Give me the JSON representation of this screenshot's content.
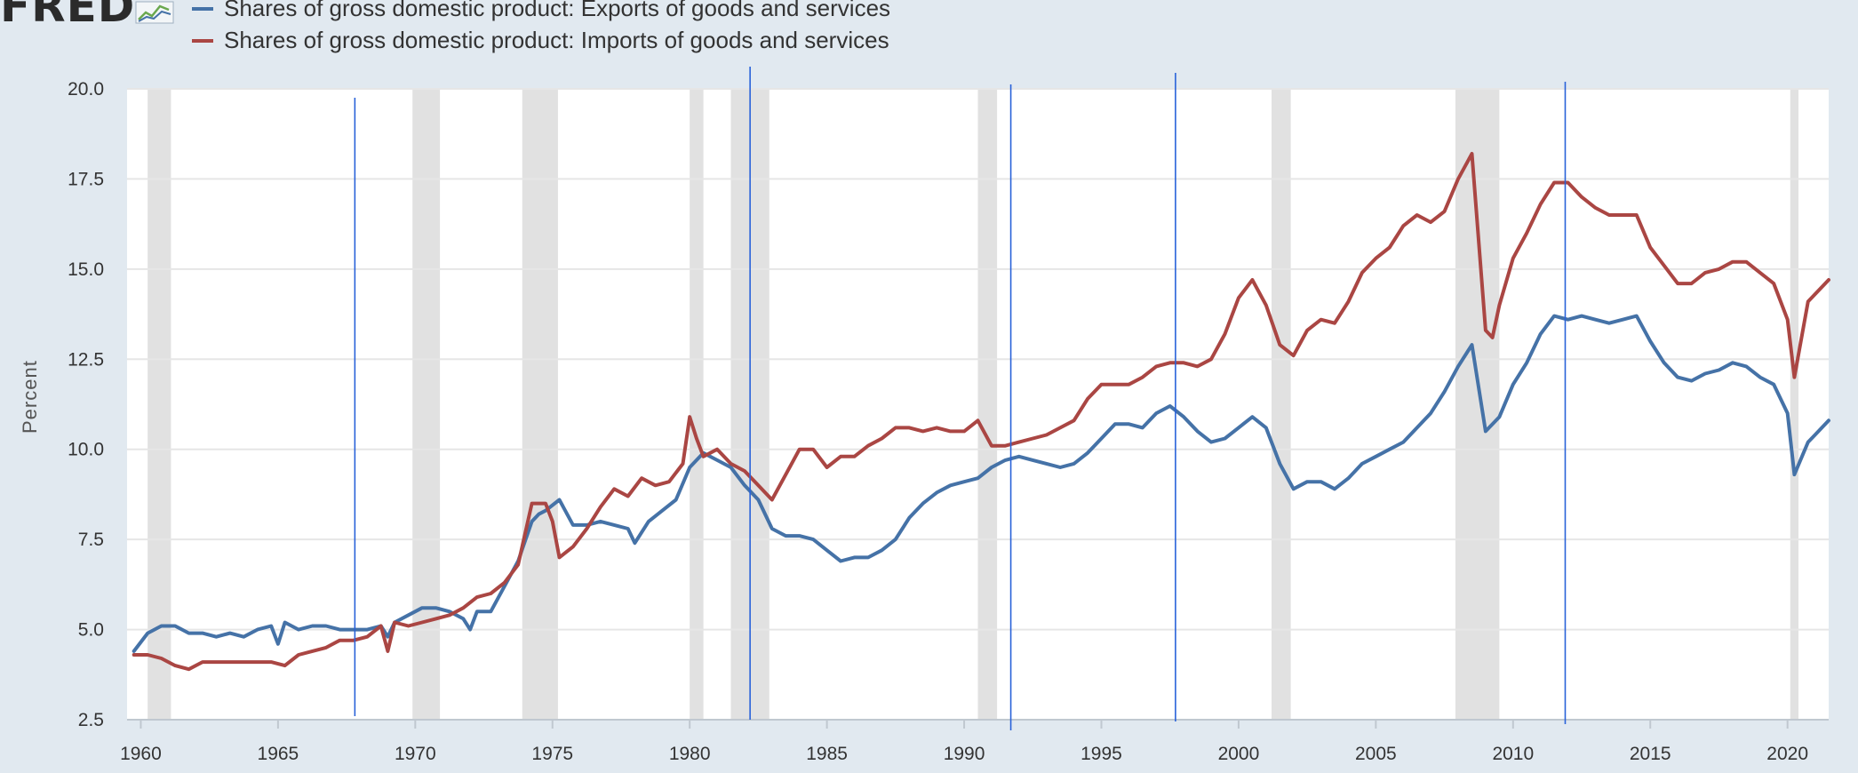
{
  "header": {
    "logo_text": "FRED",
    "logo_icon": "fred-chart-logo-icon"
  },
  "colors": {
    "exports": "#4572a7",
    "imports": "#aa4643",
    "recession": "#e1e1e1",
    "vertical_marker": "#2962d9",
    "grid": "#e6e6e6",
    "background": "#e1e9f0",
    "plot": "#ffffff"
  },
  "chart_data": {
    "type": "line",
    "ylabel": "Percent",
    "xlim": [
      1959.5,
      2021.5
    ],
    "ylim": [
      2.5,
      20.0
    ],
    "yticks": [
      2.5,
      5.0,
      7.5,
      10.0,
      12.5,
      15.0,
      17.5,
      20.0
    ],
    "ytick_labels": [
      "2.5",
      "5.0",
      "7.5",
      "10.0",
      "12.5",
      "15.0",
      "17.5",
      "20.0"
    ],
    "xticks": [
      1960,
      1965,
      1970,
      1975,
      1980,
      1985,
      1990,
      1995,
      2000,
      2005,
      2010,
      2015,
      2020
    ],
    "xtick_labels": [
      "1960",
      "1965",
      "1970",
      "1975",
      "1980",
      "1985",
      "1990",
      "1995",
      "2000",
      "2005",
      "2010",
      "2015",
      "2020"
    ],
    "grid": true,
    "legend_position": "top-left",
    "recessions": [
      [
        1960.25,
        1961.1
      ],
      [
        1969.9,
        1970.9
      ],
      [
        1973.9,
        1975.2
      ],
      [
        1980.0,
        1980.5
      ],
      [
        1981.5,
        1982.9
      ],
      [
        1990.5,
        1991.2
      ],
      [
        2001.2,
        2001.9
      ],
      [
        2007.9,
        2009.5
      ],
      [
        2020.1,
        2020.4
      ]
    ],
    "vertical_markers": [
      1967.8,
      1982.2,
      1991.7,
      1997.7,
      2011.9
    ],
    "series": [
      {
        "name": "Shares of gross domestic product: Exports of goods and services",
        "points": [
          [
            1959.75,
            4.4
          ],
          [
            1960.25,
            4.9
          ],
          [
            1960.75,
            5.1
          ],
          [
            1961.25,
            5.1
          ],
          [
            1961.75,
            4.9
          ],
          [
            1962.25,
            4.9
          ],
          [
            1962.75,
            4.8
          ],
          [
            1963.25,
            4.9
          ],
          [
            1963.75,
            4.8
          ],
          [
            1964.25,
            5.0
          ],
          [
            1964.75,
            5.1
          ],
          [
            1965.0,
            4.6
          ],
          [
            1965.25,
            5.2
          ],
          [
            1965.75,
            5.0
          ],
          [
            1966.25,
            5.1
          ],
          [
            1966.75,
            5.1
          ],
          [
            1967.25,
            5.0
          ],
          [
            1967.75,
            5.0
          ],
          [
            1968.25,
            5.0
          ],
          [
            1968.75,
            5.1
          ],
          [
            1969.0,
            4.8
          ],
          [
            1969.25,
            5.2
          ],
          [
            1969.75,
            5.4
          ],
          [
            1970.25,
            5.6
          ],
          [
            1970.75,
            5.6
          ],
          [
            1971.25,
            5.5
          ],
          [
            1971.75,
            5.3
          ],
          [
            1972.0,
            5.0
          ],
          [
            1972.25,
            5.5
          ],
          [
            1972.75,
            5.5
          ],
          [
            1973.25,
            6.2
          ],
          [
            1973.75,
            6.9
          ],
          [
            1974.25,
            8.0
          ],
          [
            1974.5,
            8.2
          ],
          [
            1974.75,
            8.3
          ],
          [
            1975.25,
            8.6
          ],
          [
            1975.75,
            7.9
          ],
          [
            1976.25,
            7.9
          ],
          [
            1976.75,
            8.0
          ],
          [
            1977.25,
            7.9
          ],
          [
            1977.75,
            7.8
          ],
          [
            1978.0,
            7.4
          ],
          [
            1978.5,
            8.0
          ],
          [
            1979.0,
            8.3
          ],
          [
            1979.5,
            8.6
          ],
          [
            1980.0,
            9.5
          ],
          [
            1980.5,
            9.9
          ],
          [
            1981.0,
            9.7
          ],
          [
            1981.5,
            9.5
          ],
          [
            1982.0,
            9.0
          ],
          [
            1982.5,
            8.6
          ],
          [
            1983.0,
            7.8
          ],
          [
            1983.5,
            7.6
          ],
          [
            1984.0,
            7.6
          ],
          [
            1984.5,
            7.5
          ],
          [
            1985.0,
            7.2
          ],
          [
            1985.5,
            6.9
          ],
          [
            1986.0,
            7.0
          ],
          [
            1986.5,
            7.0
          ],
          [
            1987.0,
            7.2
          ],
          [
            1987.5,
            7.5
          ],
          [
            1988.0,
            8.1
          ],
          [
            1988.5,
            8.5
          ],
          [
            1989.0,
            8.8
          ],
          [
            1989.5,
            9.0
          ],
          [
            1990.0,
            9.1
          ],
          [
            1990.5,
            9.2
          ],
          [
            1991.0,
            9.5
          ],
          [
            1991.5,
            9.7
          ],
          [
            1992.0,
            9.8
          ],
          [
            1992.5,
            9.7
          ],
          [
            1993.0,
            9.6
          ],
          [
            1993.5,
            9.5
          ],
          [
            1994.0,
            9.6
          ],
          [
            1994.5,
            9.9
          ],
          [
            1995.0,
            10.3
          ],
          [
            1995.5,
            10.7
          ],
          [
            1996.0,
            10.7
          ],
          [
            1996.5,
            10.6
          ],
          [
            1997.0,
            11.0
          ],
          [
            1997.5,
            11.2
          ],
          [
            1998.0,
            10.9
          ],
          [
            1998.5,
            10.5
          ],
          [
            1999.0,
            10.2
          ],
          [
            1999.5,
            10.3
          ],
          [
            2000.0,
            10.6
          ],
          [
            2000.5,
            10.9
          ],
          [
            2001.0,
            10.6
          ],
          [
            2001.5,
            9.6
          ],
          [
            2002.0,
            8.9
          ],
          [
            2002.5,
            9.1
          ],
          [
            2003.0,
            9.1
          ],
          [
            2003.5,
            8.9
          ],
          [
            2004.0,
            9.2
          ],
          [
            2004.5,
            9.6
          ],
          [
            2005.0,
            9.8
          ],
          [
            2005.5,
            10.0
          ],
          [
            2006.0,
            10.2
          ],
          [
            2006.5,
            10.6
          ],
          [
            2007.0,
            11.0
          ],
          [
            2007.5,
            11.6
          ],
          [
            2008.0,
            12.3
          ],
          [
            2008.5,
            12.9
          ],
          [
            2009.0,
            10.5
          ],
          [
            2009.5,
            10.9
          ],
          [
            2010.0,
            11.8
          ],
          [
            2010.5,
            12.4
          ],
          [
            2011.0,
            13.2
          ],
          [
            2011.5,
            13.7
          ],
          [
            2012.0,
            13.6
          ],
          [
            2012.5,
            13.7
          ],
          [
            2013.0,
            13.6
          ],
          [
            2013.5,
            13.5
          ],
          [
            2014.0,
            13.6
          ],
          [
            2014.5,
            13.7
          ],
          [
            2015.0,
            13.0
          ],
          [
            2015.5,
            12.4
          ],
          [
            2016.0,
            12.0
          ],
          [
            2016.5,
            11.9
          ],
          [
            2017.0,
            12.1
          ],
          [
            2017.5,
            12.2
          ],
          [
            2018.0,
            12.4
          ],
          [
            2018.5,
            12.3
          ],
          [
            2019.0,
            12.0
          ],
          [
            2019.5,
            11.8
          ],
          [
            2020.0,
            11.0
          ],
          [
            2020.25,
            9.3
          ],
          [
            2020.75,
            10.2
          ],
          [
            2021.0,
            10.4
          ],
          [
            2021.5,
            10.8
          ]
        ]
      },
      {
        "name": "Shares of gross domestic product: Imports of goods and services",
        "points": [
          [
            1959.75,
            4.3
          ],
          [
            1960.25,
            4.3
          ],
          [
            1960.75,
            4.2
          ],
          [
            1961.25,
            4.0
          ],
          [
            1961.75,
            3.9
          ],
          [
            1962.25,
            4.1
          ],
          [
            1962.75,
            4.1
          ],
          [
            1963.25,
            4.1
          ],
          [
            1963.75,
            4.1
          ],
          [
            1964.25,
            4.1
          ],
          [
            1964.75,
            4.1
          ],
          [
            1965.25,
            4.0
          ],
          [
            1965.75,
            4.3
          ],
          [
            1966.25,
            4.4
          ],
          [
            1966.75,
            4.5
          ],
          [
            1967.25,
            4.7
          ],
          [
            1967.75,
            4.7
          ],
          [
            1968.25,
            4.8
          ],
          [
            1968.75,
            5.1
          ],
          [
            1969.0,
            4.4
          ],
          [
            1969.25,
            5.2
          ],
          [
            1969.75,
            5.1
          ],
          [
            1970.25,
            5.2
          ],
          [
            1970.75,
            5.3
          ],
          [
            1971.25,
            5.4
          ],
          [
            1971.75,
            5.6
          ],
          [
            1972.25,
            5.9
          ],
          [
            1972.75,
            6.0
          ],
          [
            1973.25,
            6.3
          ],
          [
            1973.75,
            6.8
          ],
          [
            1974.25,
            8.5
          ],
          [
            1974.75,
            8.5
          ],
          [
            1975.0,
            8.0
          ],
          [
            1975.25,
            7.0
          ],
          [
            1975.75,
            7.3
          ],
          [
            1976.25,
            7.8
          ],
          [
            1976.75,
            8.4
          ],
          [
            1977.25,
            8.9
          ],
          [
            1977.75,
            8.7
          ],
          [
            1978.25,
            9.2
          ],
          [
            1978.75,
            9.0
          ],
          [
            1979.25,
            9.1
          ],
          [
            1979.75,
            9.6
          ],
          [
            1980.0,
            10.9
          ],
          [
            1980.25,
            10.3
          ],
          [
            1980.5,
            9.8
          ],
          [
            1981.0,
            10.0
          ],
          [
            1981.5,
            9.6
          ],
          [
            1982.0,
            9.4
          ],
          [
            1982.5,
            9.0
          ],
          [
            1983.0,
            8.6
          ],
          [
            1983.5,
            9.3
          ],
          [
            1984.0,
            10.0
          ],
          [
            1984.5,
            10.0
          ],
          [
            1985.0,
            9.5
          ],
          [
            1985.5,
            9.8
          ],
          [
            1986.0,
            9.8
          ],
          [
            1986.5,
            10.1
          ],
          [
            1987.0,
            10.3
          ],
          [
            1987.5,
            10.6
          ],
          [
            1988.0,
            10.6
          ],
          [
            1988.5,
            10.5
          ],
          [
            1989.0,
            10.6
          ],
          [
            1989.5,
            10.5
          ],
          [
            1990.0,
            10.5
          ],
          [
            1990.5,
            10.8
          ],
          [
            1991.0,
            10.1
          ],
          [
            1991.5,
            10.1
          ],
          [
            1992.0,
            10.2
          ],
          [
            1992.5,
            10.3
          ],
          [
            1993.0,
            10.4
          ],
          [
            1993.5,
            10.6
          ],
          [
            1994.0,
            10.8
          ],
          [
            1994.5,
            11.4
          ],
          [
            1995.0,
            11.8
          ],
          [
            1995.5,
            11.8
          ],
          [
            1996.0,
            11.8
          ],
          [
            1996.5,
            12.0
          ],
          [
            1997.0,
            12.3
          ],
          [
            1997.5,
            12.4
          ],
          [
            1998.0,
            12.4
          ],
          [
            1998.5,
            12.3
          ],
          [
            1999.0,
            12.5
          ],
          [
            1999.5,
            13.2
          ],
          [
            2000.0,
            14.2
          ],
          [
            2000.5,
            14.7
          ],
          [
            2001.0,
            14.0
          ],
          [
            2001.5,
            12.9
          ],
          [
            2002.0,
            12.6
          ],
          [
            2002.5,
            13.3
          ],
          [
            2003.0,
            13.6
          ],
          [
            2003.5,
            13.5
          ],
          [
            2004.0,
            14.1
          ],
          [
            2004.5,
            14.9
          ],
          [
            2005.0,
            15.3
          ],
          [
            2005.5,
            15.6
          ],
          [
            2006.0,
            16.2
          ],
          [
            2006.5,
            16.5
          ],
          [
            2007.0,
            16.3
          ],
          [
            2007.5,
            16.6
          ],
          [
            2008.0,
            17.5
          ],
          [
            2008.5,
            18.2
          ],
          [
            2009.0,
            13.3
          ],
          [
            2009.25,
            13.1
          ],
          [
            2009.5,
            14.0
          ],
          [
            2010.0,
            15.3
          ],
          [
            2010.5,
            16.0
          ],
          [
            2011.0,
            16.8
          ],
          [
            2011.5,
            17.4
          ],
          [
            2012.0,
            17.4
          ],
          [
            2012.5,
            17.0
          ],
          [
            2013.0,
            16.7
          ],
          [
            2013.5,
            16.5
          ],
          [
            2014.0,
            16.5
          ],
          [
            2014.5,
            16.5
          ],
          [
            2015.0,
            15.6
          ],
          [
            2015.5,
            15.1
          ],
          [
            2016.0,
            14.6
          ],
          [
            2016.5,
            14.6
          ],
          [
            2017.0,
            14.9
          ],
          [
            2017.5,
            15.0
          ],
          [
            2018.0,
            15.2
          ],
          [
            2018.5,
            15.2
          ],
          [
            2019.0,
            14.9
          ],
          [
            2019.5,
            14.6
          ],
          [
            2020.0,
            13.6
          ],
          [
            2020.25,
            12.0
          ],
          [
            2020.75,
            14.1
          ],
          [
            2021.5,
            14.7
          ]
        ]
      }
    ]
  }
}
